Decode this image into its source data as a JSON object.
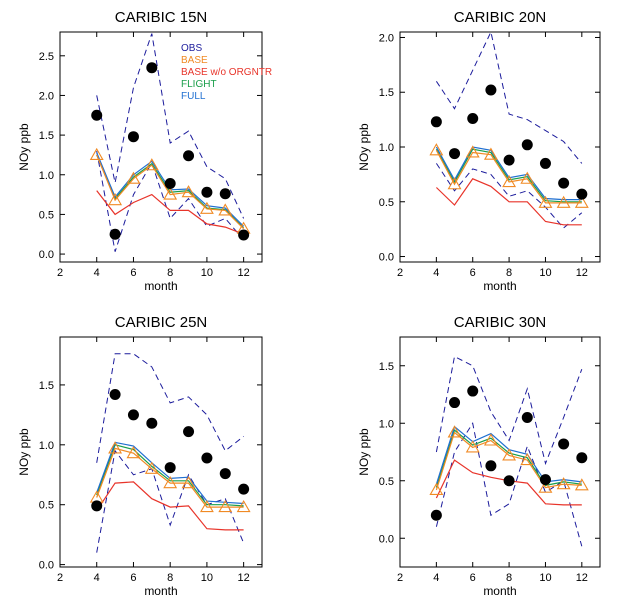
{
  "legend": [
    {
      "label": "OBS",
      "color": "#1c1c9c"
    },
    {
      "label": "BASE",
      "color": "#f08a24"
    },
    {
      "label": "BASE w/o ORGNTR",
      "color": "#e8342a"
    },
    {
      "label": "FLIGHT",
      "color": "#1a9e4a"
    },
    {
      "label": "FULL",
      "color": "#1f6fd1"
    }
  ],
  "chart_data": [
    {
      "type": "line",
      "title": "CARIBIC 15N",
      "xlabel": "month",
      "ylabel": "NOy ppb",
      "xlim": [
        2,
        13
      ],
      "ylim": [
        -0.1,
        2.8
      ],
      "xticks": [
        2,
        4,
        6,
        8,
        10,
        12
      ],
      "yticks": [
        0.0,
        0.5,
        1.0,
        1.5,
        2.0,
        2.5
      ],
      "ytick_labels": [
        "0.0",
        "0.5",
        "1.0",
        "1.5",
        "2.0",
        "2.5"
      ],
      "x": [
        4,
        5,
        6,
        7,
        8,
        9,
        10,
        11,
        12
      ],
      "obs_mean": [
        1.75,
        0.25,
        1.48,
        2.35,
        0.89,
        1.24,
        0.78,
        0.76,
        0.24
      ],
      "obs_upper": [
        2.0,
        0.9,
        2.1,
        2.78,
        1.4,
        1.55,
        1.1,
        0.95,
        0.45
      ],
      "obs_lower": [
        1.3,
        0.03,
        0.75,
        1.15,
        0.45,
        0.7,
        0.35,
        0.45,
        0.18
      ],
      "series": [
        {
          "name": "BASE",
          "values": [
            1.25,
            0.68,
            0.95,
            1.12,
            0.75,
            0.78,
            0.57,
            0.55,
            0.32
          ]
        },
        {
          "name": "BASE w/o ORGNTR",
          "values": [
            0.8,
            0.5,
            0.65,
            0.75,
            0.55,
            0.55,
            0.38,
            0.34,
            0.25
          ]
        },
        {
          "name": "FLIGHT",
          "values": [
            1.25,
            0.7,
            0.97,
            1.14,
            0.78,
            0.8,
            0.58,
            0.56,
            0.33
          ]
        },
        {
          "name": "FULL",
          "values": [
            1.28,
            0.72,
            1.0,
            1.17,
            0.81,
            0.82,
            0.61,
            0.58,
            0.35
          ]
        }
      ]
    },
    {
      "type": "line",
      "title": "CARIBIC 20N",
      "xlabel": "month",
      "ylabel": "NOy ppb",
      "xlim": [
        2,
        13
      ],
      "ylim": [
        -0.05,
        2.05
      ],
      "xticks": [
        2,
        4,
        6,
        8,
        10,
        12
      ],
      "yticks": [
        0.0,
        0.5,
        1.0,
        1.5,
        2.0
      ],
      "ytick_labels": [
        "0.0",
        "0.5",
        "1.0",
        "1.5",
        "2.0"
      ],
      "x": [
        4,
        5,
        6,
        7,
        8,
        9,
        10,
        11,
        12
      ],
      "obs_mean": [
        1.23,
        0.94,
        1.26,
        1.52,
        0.88,
        1.02,
        0.85,
        0.67,
        0.57
      ],
      "obs_upper": [
        1.6,
        1.35,
        1.7,
        2.05,
        1.3,
        1.25,
        1.15,
        1.05,
        0.85
      ],
      "obs_lower": [
        0.85,
        0.6,
        0.8,
        0.75,
        0.55,
        0.6,
        0.45,
        0.26,
        0.4
      ],
      "series": [
        {
          "name": "BASE",
          "values": [
            0.97,
            0.66,
            0.95,
            0.93,
            0.68,
            0.71,
            0.49,
            0.49,
            0.49
          ]
        },
        {
          "name": "BASE w/o ORGNTR",
          "values": [
            0.63,
            0.47,
            0.71,
            0.64,
            0.5,
            0.5,
            0.32,
            0.29,
            0.29
          ]
        },
        {
          "name": "FLIGHT",
          "values": [
            0.98,
            0.68,
            0.98,
            0.95,
            0.7,
            0.73,
            0.51,
            0.5,
            0.5
          ]
        },
        {
          "name": "FULL",
          "values": [
            1.0,
            0.7,
            1.0,
            0.97,
            0.72,
            0.75,
            0.53,
            0.52,
            0.52
          ]
        }
      ]
    },
    {
      "type": "line",
      "title": "CARIBIC 25N",
      "xlabel": "month",
      "ylabel": "NOy ppb",
      "xlim": [
        2,
        13
      ],
      "ylim": [
        -0.02,
        1.9
      ],
      "xticks": [
        2,
        4,
        6,
        8,
        10,
        12
      ],
      "yticks": [
        0.0,
        0.5,
        1.0,
        1.5
      ],
      "ytick_labels": [
        "0.0",
        "0.5",
        "1.0",
        "1.5"
      ],
      "x": [
        4,
        5,
        6,
        7,
        8,
        9,
        10,
        11,
        12
      ],
      "obs_mean": [
        0.49,
        1.42,
        1.25,
        1.18,
        0.81,
        1.11,
        0.89,
        0.76,
        0.63
      ],
      "obs_upper": [
        0.85,
        1.76,
        1.76,
        1.65,
        1.35,
        1.4,
        1.25,
        0.95,
        1.07
      ],
      "obs_lower": [
        0.1,
        0.95,
        0.75,
        0.8,
        0.33,
        0.75,
        0.5,
        0.55,
        0.18
      ],
      "series": [
        {
          "name": "BASE",
          "values": [
            0.56,
            0.97,
            0.93,
            0.8,
            0.68,
            0.68,
            0.48,
            0.48,
            0.48
          ]
        },
        {
          "name": "BASE w/o ORGNTR",
          "values": [
            0.45,
            0.68,
            0.69,
            0.55,
            0.48,
            0.49,
            0.3,
            0.29,
            0.29
          ]
        },
        {
          "name": "FLIGHT",
          "values": [
            0.58,
            1.0,
            0.96,
            0.82,
            0.7,
            0.7,
            0.5,
            0.5,
            0.49
          ]
        },
        {
          "name": "FULL",
          "values": [
            0.6,
            1.02,
            0.99,
            0.85,
            0.72,
            0.73,
            0.53,
            0.52,
            0.51
          ]
        }
      ]
    },
    {
      "type": "line",
      "title": "CARIBIC 30N",
      "xlabel": "month",
      "ylabel": "NOy ppb",
      "xlim": [
        2,
        13
      ],
      "ylim": [
        -0.25,
        1.75
      ],
      "xticks": [
        2,
        4,
        6,
        8,
        10,
        12
      ],
      "yticks": [
        0.0,
        0.5,
        1.0,
        1.5
      ],
      "ytick_labels": [
        "0.0",
        "0.5",
        "1.0",
        "1.5"
      ],
      "x": [
        4,
        5,
        6,
        7,
        8,
        9,
        10,
        11,
        12
      ],
      "obs_mean": [
        0.2,
        1.18,
        1.28,
        0.63,
        0.5,
        1.05,
        0.51,
        0.82,
        0.7
      ],
      "obs_upper": [
        0.75,
        1.58,
        1.5,
        1.1,
        0.85,
        1.3,
        0.65,
        1.05,
        1.47
      ],
      "obs_lower": [
        0.1,
        0.75,
        1.0,
        0.2,
        0.3,
        0.8,
        0.4,
        0.5,
        -0.07
      ],
      "series": [
        {
          "name": "BASE",
          "values": [
            0.42,
            0.92,
            0.79,
            0.85,
            0.72,
            0.68,
            0.44,
            0.47,
            0.46
          ]
        },
        {
          "name": "BASE w/o ORGNTR",
          "values": [
            0.35,
            0.68,
            0.57,
            0.53,
            0.5,
            0.48,
            0.3,
            0.29,
            0.29
          ]
        },
        {
          "name": "FLIGHT",
          "values": [
            0.44,
            0.94,
            0.81,
            0.87,
            0.74,
            0.7,
            0.46,
            0.49,
            0.47
          ]
        },
        {
          "name": "FULL",
          "values": [
            0.47,
            0.97,
            0.84,
            0.91,
            0.77,
            0.73,
            0.49,
            0.51,
            0.49
          ]
        }
      ]
    }
  ]
}
